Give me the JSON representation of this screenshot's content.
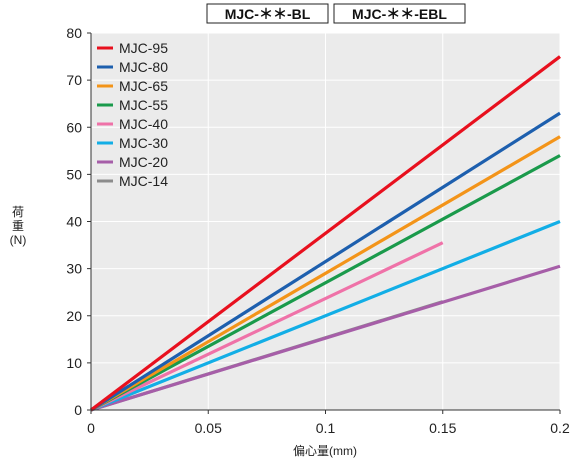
{
  "chart_data": {
    "type": "line",
    "header_labels": [
      "MJC-＊＊-BL",
      "MJC-＊＊-EBL"
    ],
    "xlabel": "偏心量(mm)",
    "ylabel": "荷重(N)",
    "ylabel_chars": [
      "荷",
      "重",
      "(N)"
    ],
    "xlim": [
      0,
      0.2
    ],
    "ylim": [
      0,
      80
    ],
    "x_ticks": [
      0,
      0.05,
      0.1,
      0.15,
      0.2
    ],
    "x_tick_labels": [
      "0",
      "0.05",
      "0.1",
      "0.15",
      "0.2"
    ],
    "y_ticks": [
      0,
      10,
      20,
      30,
      40,
      50,
      60,
      70,
      80
    ],
    "y_tick_labels": [
      "0",
      "10",
      "20",
      "30",
      "40",
      "50",
      "60",
      "70",
      "80"
    ],
    "grid": true,
    "legend_position": "top-left",
    "series": [
      {
        "name": "MJC-95",
        "color": "#e8101e",
        "x": [
          0,
          0.2
        ],
        "y": [
          0,
          75
        ]
      },
      {
        "name": "MJC-80",
        "color": "#1d5fae",
        "x": [
          0,
          0.2
        ],
        "y": [
          0,
          63
        ]
      },
      {
        "name": "MJC-65",
        "color": "#f39419",
        "x": [
          0,
          0.2
        ],
        "y": [
          0,
          58
        ]
      },
      {
        "name": "MJC-55",
        "color": "#1a9a4b",
        "x": [
          0,
          0.2
        ],
        "y": [
          0,
          54
        ]
      },
      {
        "name": "MJC-40",
        "color": "#ef72a8",
        "x": [
          0,
          0.15
        ],
        "y": [
          0,
          35.5
        ]
      },
      {
        "name": "MJC-30",
        "color": "#12aee6",
        "x": [
          0,
          0.2
        ],
        "y": [
          0,
          40
        ]
      },
      {
        "name": "MJC-20",
        "color": "#a65ea8",
        "x": [
          0,
          0.2
        ],
        "y": [
          0,
          30.5
        ]
      },
      {
        "name": "MJC-14",
        "color": "#8c8c8c",
        "x": [
          0,
          0.15
        ],
        "y": [
          0,
          23
        ]
      }
    ]
  }
}
